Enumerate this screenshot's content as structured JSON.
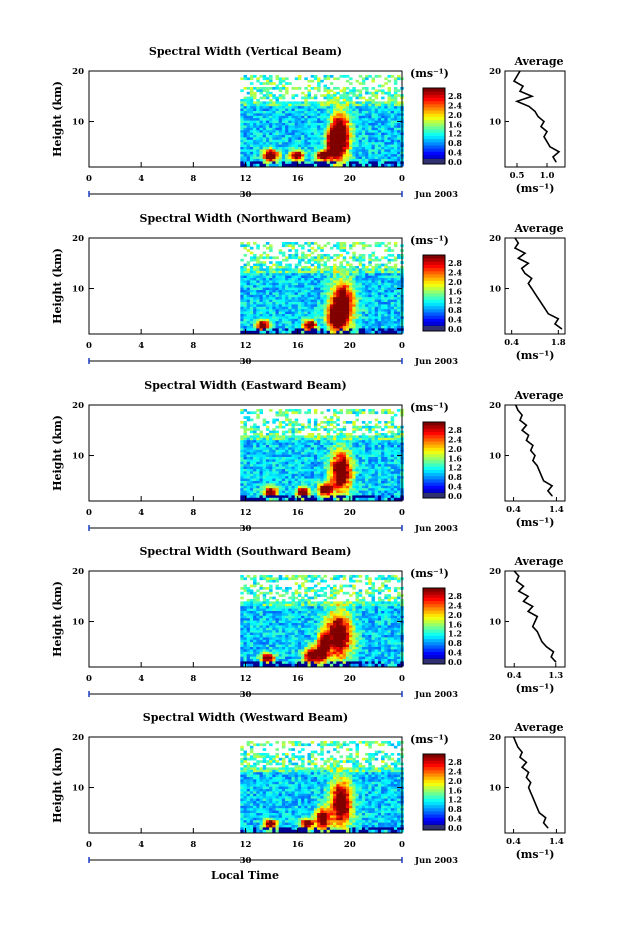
{
  "figure": {
    "xlabel": "Local Time",
    "date_label": "30",
    "month_label": "Jun 2003",
    "unit_label": "(ms⁻¹)"
  },
  "chart_data": [
    {
      "type": "heatmap",
      "title": "Spectral Width (Vertical Beam)",
      "ylabel": "Height (km)",
      "xlabel": "Local Time",
      "x_ticks": [
        "0",
        "4",
        "8",
        "12",
        "16",
        "20",
        "0"
      ],
      "y_ticks": [
        "20",
        "10"
      ],
      "xlim": [
        0,
        24
      ],
      "ylim": [
        1,
        20
      ],
      "data_start_hour": 11.6,
      "colorbar_ticks": [
        "2.8",
        "2.4",
        "2.0",
        "1.6",
        "1.2",
        "0.8",
        "0.4",
        "0.0"
      ],
      "cores": [
        [
          13.8,
          3.5,
          0.6,
          1.2
        ],
        [
          15.8,
          3.5,
          0.5,
          1.0
        ],
        [
          17.8,
          3.5,
          0.5,
          1.0
        ],
        [
          19.2,
          7.5,
          0.7,
          4.5
        ],
        [
          18.6,
          6.0,
          0.5,
          3.0
        ]
      ],
      "average": {
        "title": "Average",
        "xlabel": "(ms⁻¹)",
        "x_ticks": [
          "0.5",
          "1.0"
        ],
        "y_ticks": [
          "20",
          "10"
        ],
        "xlim": [
          0.3,
          1.3
        ],
        "heights": [
          2,
          3,
          4,
          5,
          6,
          7,
          8,
          9,
          10,
          11,
          12,
          13,
          14,
          15,
          16,
          17,
          18,
          19,
          20
        ],
        "values": [
          1.15,
          1.1,
          1.2,
          1.05,
          1.0,
          0.95,
          1.0,
          0.9,
          0.95,
          0.85,
          0.8,
          0.7,
          0.5,
          0.75,
          0.55,
          0.6,
          0.45,
          0.5,
          0.55
        ]
      }
    },
    {
      "type": "heatmap",
      "title": "Spectral Width (Northward Beam)",
      "ylabel": "Height (km)",
      "xlabel": "Local Time",
      "x_ticks": [
        "0",
        "4",
        "8",
        "12",
        "16",
        "20",
        "0"
      ],
      "y_ticks": [
        "20",
        "10"
      ],
      "xlim": [
        0,
        24
      ],
      "ylim": [
        1,
        20
      ],
      "data_start_hour": 11.6,
      "colorbar_ticks": [
        "2.8",
        "2.4",
        "2.0",
        "1.6",
        "1.2",
        "0.8",
        "0.4",
        "0.0"
      ],
      "cores": [
        [
          13.2,
          3.0,
          0.5,
          1.0
        ],
        [
          16.8,
          3.0,
          0.5,
          1.0
        ],
        [
          19.3,
          7.0,
          0.9,
          4.5
        ],
        [
          18.8,
          4.5,
          0.6,
          2.0
        ]
      ],
      "average": {
        "title": "Average",
        "xlabel": "(ms⁻¹)",
        "x_ticks": [
          "0.4",
          "1.8"
        ],
        "y_ticks": [
          "20",
          "10"
        ],
        "xlim": [
          0.2,
          2.0
        ],
        "heights": [
          2,
          3,
          4,
          5,
          6,
          7,
          8,
          9,
          10,
          11,
          12,
          13,
          14,
          15,
          16,
          17,
          18,
          19,
          20
        ],
        "values": [
          1.9,
          1.7,
          1.8,
          1.5,
          1.4,
          1.3,
          1.2,
          1.1,
          1.0,
          0.9,
          1.0,
          0.8,
          0.7,
          0.9,
          0.6,
          0.8,
          0.5,
          0.6,
          0.5
        ]
      }
    },
    {
      "type": "heatmap",
      "title": "Spectral Width (Eastward Beam)",
      "ylabel": "Height (km)",
      "xlabel": "Local Time",
      "x_ticks": [
        "0",
        "4",
        "8",
        "12",
        "16",
        "20",
        "0"
      ],
      "y_ticks": [
        "20",
        "10"
      ],
      "xlim": [
        0,
        24
      ],
      "ylim": [
        1,
        20
      ],
      "data_start_hour": 11.6,
      "colorbar_ticks": [
        "2.8",
        "2.4",
        "2.0",
        "1.6",
        "1.2",
        "0.8",
        "0.4",
        "0.0"
      ],
      "cores": [
        [
          13.8,
          3.0,
          0.5,
          1.0
        ],
        [
          16.3,
          3.0,
          0.5,
          1.0
        ],
        [
          19.2,
          7.0,
          0.8,
          4.0
        ],
        [
          18.0,
          3.5,
          0.5,
          1.2
        ]
      ],
      "average": {
        "title": "Average",
        "xlabel": "(ms⁻¹)",
        "x_ticks": [
          "0.4",
          "1.4"
        ],
        "y_ticks": [
          "20",
          "10"
        ],
        "xlim": [
          0.2,
          1.6
        ],
        "heights": [
          2,
          3,
          4,
          5,
          6,
          7,
          8,
          9,
          10,
          11,
          12,
          13,
          14,
          15,
          16,
          17,
          18,
          19,
          20
        ],
        "values": [
          1.3,
          1.2,
          1.3,
          1.1,
          1.05,
          1.0,
          0.95,
          0.85,
          0.9,
          0.8,
          0.85,
          0.7,
          0.75,
          0.6,
          0.7,
          0.55,
          0.6,
          0.5,
          0.45
        ]
      }
    },
    {
      "type": "heatmap",
      "title": "Spectral Width (Southward Beam)",
      "ylabel": "Height (km)",
      "xlabel": "Local Time",
      "x_ticks": [
        "0",
        "4",
        "8",
        "12",
        "16",
        "20",
        "0"
      ],
      "y_ticks": [
        "20",
        "10"
      ],
      "xlim": [
        0,
        24
      ],
      "ylim": [
        1,
        20
      ],
      "data_start_hour": 11.6,
      "colorbar_ticks": [
        "2.8",
        "2.4",
        "2.0",
        "1.6",
        "1.2",
        "0.8",
        "0.4",
        "0.0"
      ],
      "cores": [
        [
          13.6,
          3.0,
          0.5,
          0.9
        ],
        [
          17.0,
          3.5,
          0.6,
          1.5
        ],
        [
          19.0,
          7.5,
          1.0,
          4.5
        ],
        [
          17.8,
          5.0,
          0.4,
          2.5
        ]
      ],
      "average": {
        "title": "Average",
        "xlabel": "(ms⁻¹)",
        "x_ticks": [
          "0.4",
          "1.3"
        ],
        "y_ticks": [
          "20",
          "10"
        ],
        "xlim": [
          0.2,
          1.5
        ],
        "heights": [
          2,
          3,
          4,
          5,
          6,
          7,
          8,
          9,
          10,
          11,
          12,
          13,
          14,
          15,
          16,
          17,
          18,
          19,
          20
        ],
        "values": [
          1.3,
          1.2,
          1.25,
          1.1,
          1.0,
          0.95,
          0.9,
          0.8,
          0.85,
          0.9,
          0.7,
          0.8,
          0.6,
          0.7,
          0.5,
          0.6,
          0.45,
          0.5,
          0.4
        ]
      }
    },
    {
      "type": "heatmap",
      "title": "Spectral Width (Westward Beam)",
      "ylabel": "Height (km)",
      "xlabel": "Local Time",
      "x_ticks": [
        "0",
        "4",
        "8",
        "12",
        "16",
        "20",
        "0"
      ],
      "y_ticks": [
        "20",
        "10"
      ],
      "xlim": [
        0,
        24
      ],
      "ylim": [
        1,
        20
      ],
      "data_start_hour": 11.6,
      "colorbar_ticks": [
        "2.8",
        "2.4",
        "2.0",
        "1.6",
        "1.2",
        "0.8",
        "0.4",
        "0.0"
      ],
      "cores": [
        [
          13.8,
          3.0,
          0.5,
          0.9
        ],
        [
          16.6,
          3.0,
          0.5,
          1.0
        ],
        [
          19.2,
          7.0,
          0.8,
          4.5
        ],
        [
          17.8,
          4.0,
          0.5,
          2.0
        ]
      ],
      "average": {
        "title": "Average",
        "xlabel": "(ms⁻¹)",
        "x_ticks": [
          "0.4",
          "1.4"
        ],
        "y_ticks": [
          "20",
          "10"
        ],
        "xlim": [
          0.2,
          1.6
        ],
        "heights": [
          2,
          3,
          4,
          5,
          6,
          7,
          8,
          9,
          10,
          11,
          12,
          13,
          14,
          15,
          16,
          17,
          18,
          19,
          20
        ],
        "values": [
          1.2,
          1.1,
          1.15,
          1.0,
          0.95,
          0.9,
          0.85,
          0.8,
          0.75,
          0.8,
          0.7,
          0.75,
          0.6,
          0.7,
          0.55,
          0.6,
          0.5,
          0.45,
          0.4
        ]
      }
    }
  ]
}
